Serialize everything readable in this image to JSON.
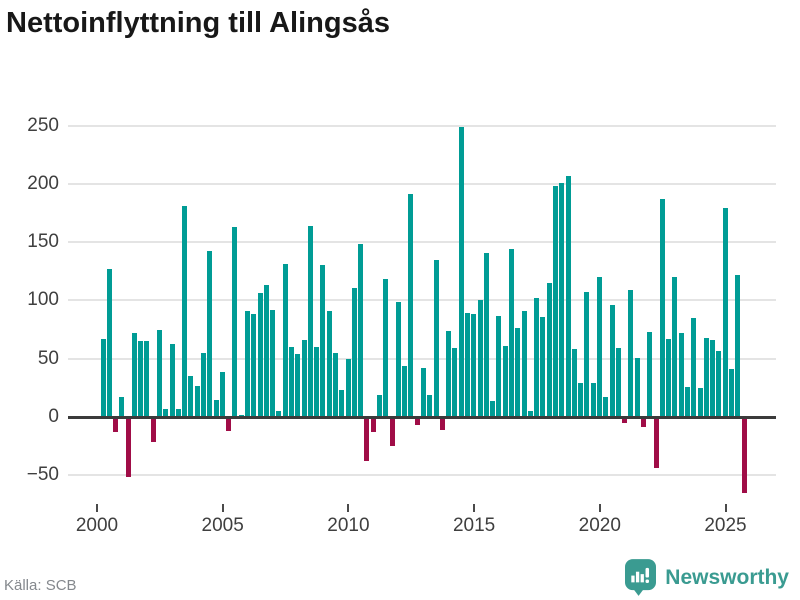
{
  "title": "Nettoinflyttning till Alingsås",
  "source": "Källa: SCB",
  "branding": {
    "logo_text": "Newsworthy",
    "icon": "speech-bubble-bar-chart-exclamation"
  },
  "colors": {
    "positive_bar": "#009c95",
    "negative_bar": "#a00d47",
    "zero_line": "#3b3b3b",
    "gridline": "#e4e4e4",
    "axis_text": "#3f3f3f",
    "source_text": "#84888d",
    "brand_teal": "#3a9b91",
    "title_text": "#181818"
  },
  "chart_data": {
    "type": "bar",
    "title": "Nettoinflyttning till Alingsås",
    "xlabel": "",
    "ylabel": "",
    "x_period": "quarterly",
    "x_start": "2000-Q1",
    "x_end": "2025-Q3",
    "values": [
      67,
      127,
      -12,
      17,
      -51,
      72,
      65,
      65,
      -21,
      75,
      7,
      63,
      7,
      181,
      35,
      27,
      55,
      142,
      15,
      39,
      -11,
      163,
      2,
      91,
      88,
      106,
      113,
      92,
      5,
      131,
      60,
      54,
      66,
      164,
      60,
      130,
      91,
      55,
      23,
      50,
      111,
      148,
      -37,
      -12,
      19,
      118,
      -24,
      99,
      44,
      191,
      -6,
      42,
      19,
      135,
      -10,
      74,
      59,
      249,
      89,
      88,
      100,
      141,
      14,
      87,
      61,
      144,
      76,
      91,
      5,
      102,
      86,
      115,
      198,
      201,
      207,
      58,
      29,
      107,
      29,
      120,
      17,
      96,
      59,
      -4,
      109,
      51,
      -8,
      73,
      -43,
      187,
      67,
      120,
      72,
      26,
      85,
      25,
      68,
      66,
      57,
      179,
      41,
      122,
      -64
    ],
    "xticks": [
      2000,
      2005,
      2010,
      2015,
      2020,
      2025
    ],
    "xtick_labels": [
      "2000",
      "2005",
      "2010",
      "2015",
      "2020",
      "2025"
    ],
    "yticks": [
      -50,
      0,
      50,
      100,
      150,
      200,
      250
    ],
    "ytick_labels": [
      "−50",
      "0",
      "50",
      "100",
      "150",
      "200",
      "250"
    ],
    "ylim": [
      -75,
      260
    ],
    "grid": "horizontal",
    "legend": "none",
    "color_rule": "positive values teal, negative values crimson"
  }
}
